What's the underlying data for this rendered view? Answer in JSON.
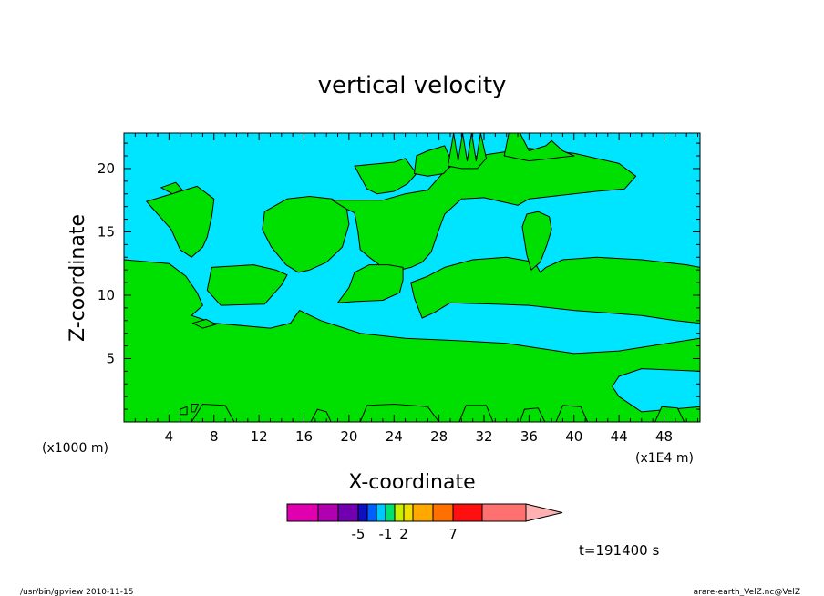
{
  "chart_data": {
    "type": "heatmap",
    "title": "vertical velocity",
    "xlabel": "X-coordinate",
    "ylabel": "Z-coordinate",
    "x_unit_left": "(x1000 m)",
    "x_unit_right": "(x1E4 m)",
    "xlim": [
      0,
      51.2
    ],
    "ylim": [
      0,
      22.8
    ],
    "x_ticks": [
      4,
      8,
      12,
      16,
      20,
      24,
      28,
      32,
      36,
      40,
      44,
      48
    ],
    "y_ticks": [
      5,
      10,
      15,
      20
    ],
    "colors": {
      "background": "#00e5ff",
      "positive": "#00e000",
      "contour": "#000000"
    },
    "colorbar": {
      "colors": [
        "#e000b0",
        "#b000b0",
        "#7000b0",
        "#1010c0",
        "#0060ff",
        "#00c8ff",
        "#00e070",
        "#c8f000",
        "#f0e000",
        "#ffa800",
        "#ff7000",
        "#ff1010",
        "#ff7070",
        "#ffb0b0"
      ],
      "tick_labels": [
        "-5",
        "-1",
        "2",
        "7"
      ]
    },
    "time_label": "t=191400 s"
  },
  "footer": {
    "left": "/usr/bin/gpview  2010-11-15",
    "right": "arare-earth_VelZ.nc@VelZ"
  }
}
